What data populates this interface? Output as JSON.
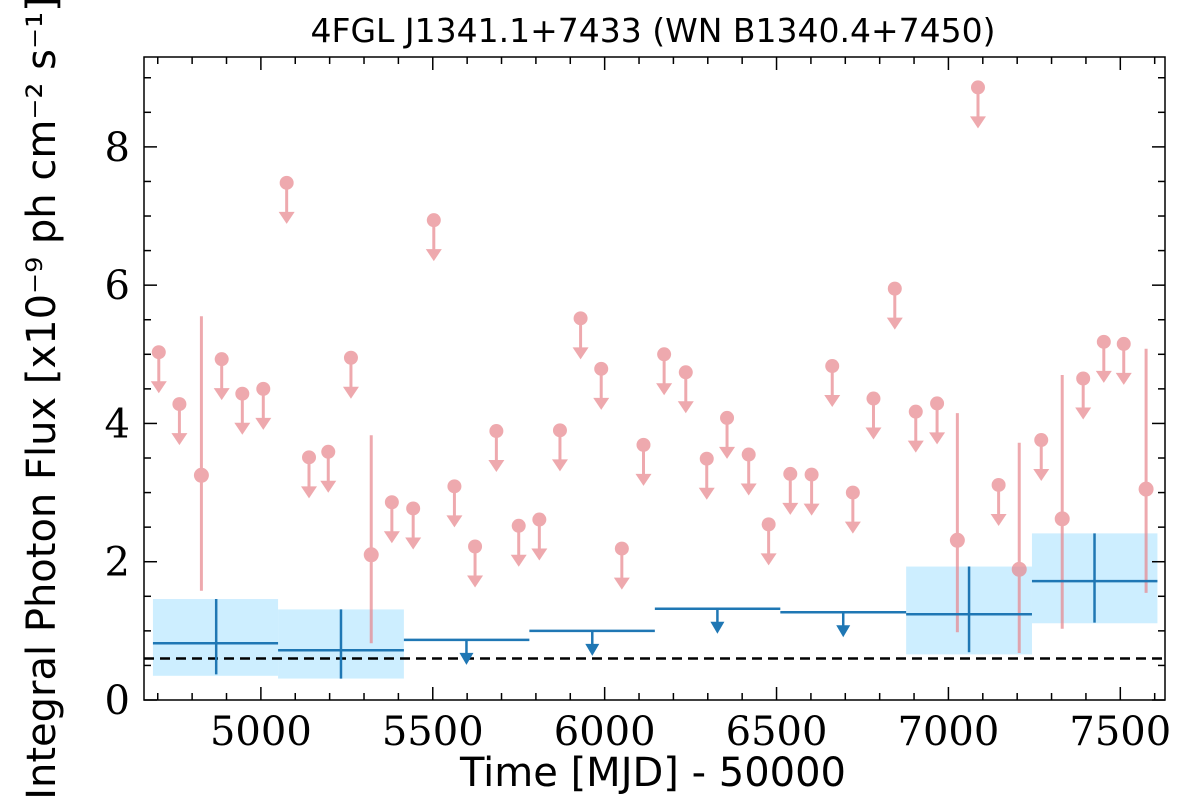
{
  "chart_data": {
    "type": "scatter",
    "title": "4FGL J1341.1+7433 (WN B1340.4+7450)",
    "xlabel": "Time [MJD] - 50000",
    "ylabel": "Integral Photon Flux [x10⁻⁹ ph cm⁻² s⁻¹]",
    "xlim": [
      4660,
      7630
    ],
    "ylim": [
      0,
      9.3
    ],
    "xticks": [
      5000,
      5500,
      6000,
      6500,
      7000,
      7500
    ],
    "xtick_labels": [
      "5000",
      "5500",
      "6000",
      "6500",
      "7000",
      "7500"
    ],
    "yticks": [
      0,
      2,
      4,
      6,
      8
    ],
    "ytick_labels": [
      "0",
      "2",
      "4",
      "6",
      "8"
    ],
    "reference_line": {
      "y": 0.6,
      "style": "dashed",
      "color": "#000000"
    },
    "colors": {
      "short_bins": "#e8868c",
      "long_bins": "#1f77b4",
      "long_band": "#cdeeff"
    },
    "series": [
      {
        "binning": "short",
        "upper_limits": [
          {
            "x": 4703,
            "y": 5.03
          },
          {
            "x": 4763,
            "y": 4.28
          },
          {
            "x": 4886,
            "y": 4.93
          },
          {
            "x": 4946,
            "y": 4.43
          },
          {
            "x": 5007,
            "y": 4.5
          },
          {
            "x": 5075,
            "y": 7.48
          },
          {
            "x": 5140,
            "y": 3.51
          },
          {
            "x": 5196,
            "y": 3.59
          },
          {
            "x": 5262,
            "y": 4.95
          },
          {
            "x": 5381,
            "y": 2.86
          },
          {
            "x": 5443,
            "y": 2.77
          },
          {
            "x": 5503,
            "y": 6.94
          },
          {
            "x": 5563,
            "y": 3.09
          },
          {
            "x": 5623,
            "y": 2.22
          },
          {
            "x": 5685,
            "y": 3.89
          },
          {
            "x": 5750,
            "y": 2.52
          },
          {
            "x": 5810,
            "y": 2.61
          },
          {
            "x": 5870,
            "y": 3.9
          },
          {
            "x": 5930,
            "y": 5.52
          },
          {
            "x": 5990,
            "y": 4.79
          },
          {
            "x": 6050,
            "y": 2.19
          },
          {
            "x": 6113,
            "y": 3.69
          },
          {
            "x": 6173,
            "y": 5.0
          },
          {
            "x": 6236,
            "y": 4.74
          },
          {
            "x": 6297,
            "y": 3.49
          },
          {
            "x": 6356,
            "y": 4.08
          },
          {
            "x": 6419,
            "y": 3.55
          },
          {
            "x": 6477,
            "y": 2.54
          },
          {
            "x": 6540,
            "y": 3.27
          },
          {
            "x": 6602,
            "y": 3.26
          },
          {
            "x": 6662,
            "y": 4.83
          },
          {
            "x": 6722,
            "y": 3.0
          },
          {
            "x": 6782,
            "y": 4.36
          },
          {
            "x": 6844,
            "y": 5.95
          },
          {
            "x": 6905,
            "y": 4.17
          },
          {
            "x": 6967,
            "y": 4.29
          },
          {
            "x": 7086,
            "y": 8.86
          },
          {
            "x": 7146,
            "y": 3.11
          },
          {
            "x": 7270,
            "y": 3.76
          },
          {
            "x": 7392,
            "y": 4.65
          },
          {
            "x": 7452,
            "y": 5.18
          },
          {
            "x": 7510,
            "y": 5.15
          }
        ],
        "detections": [
          {
            "x": 4827,
            "y": 3.25,
            "ylo": 1.58,
            "yhi": 5.55
          },
          {
            "x": 5321,
            "y": 2.1,
            "ylo": 0.82,
            "yhi": 3.83
          },
          {
            "x": 7026,
            "y": 2.31,
            "ylo": 0.98,
            "yhi": 4.15
          },
          {
            "x": 7206,
            "y": 1.89,
            "ylo": 0.68,
            "yhi": 3.72
          },
          {
            "x": 7331,
            "y": 2.62,
            "ylo": 1.03,
            "yhi": 4.7
          },
          {
            "x": 7575,
            "y": 3.05,
            "ylo": 1.55,
            "yhi": 5.08
          }
        ]
      },
      {
        "binning": "long",
        "detections": [
          {
            "x0": 4686,
            "x1": 5050,
            "x": 4870,
            "y": 0.82,
            "ylo": 0.37,
            "yhi": 1.46,
            "band_lo": 0.35,
            "band_hi": 1.46
          },
          {
            "x0": 5050,
            "x1": 5416,
            "x": 5233,
            "y": 0.72,
            "ylo": 0.31,
            "yhi": 1.31,
            "band_lo": 0.31,
            "band_hi": 1.31
          },
          {
            "x0": 6877,
            "x1": 7243,
            "x": 7060,
            "y": 1.24,
            "ylo": 0.69,
            "yhi": 1.93,
            "band_lo": 0.66,
            "band_hi": 1.93
          },
          {
            "x0": 7243,
            "x1": 7608,
            "x": 7425,
            "y": 1.72,
            "ylo": 1.12,
            "yhi": 2.41,
            "band_lo": 1.11,
            "band_hi": 2.41
          }
        ],
        "upper_limits": [
          {
            "x0": 5416,
            "x1": 5781,
            "x": 5598,
            "y": 0.87
          },
          {
            "x0": 5781,
            "x1": 6146,
            "x": 5964,
            "y": 1.0
          },
          {
            "x0": 6146,
            "x1": 6511,
            "x": 6328,
            "y": 1.32
          },
          {
            "x0": 6511,
            "x1": 6877,
            "x": 6694,
            "y": 1.27
          }
        ]
      }
    ]
  }
}
